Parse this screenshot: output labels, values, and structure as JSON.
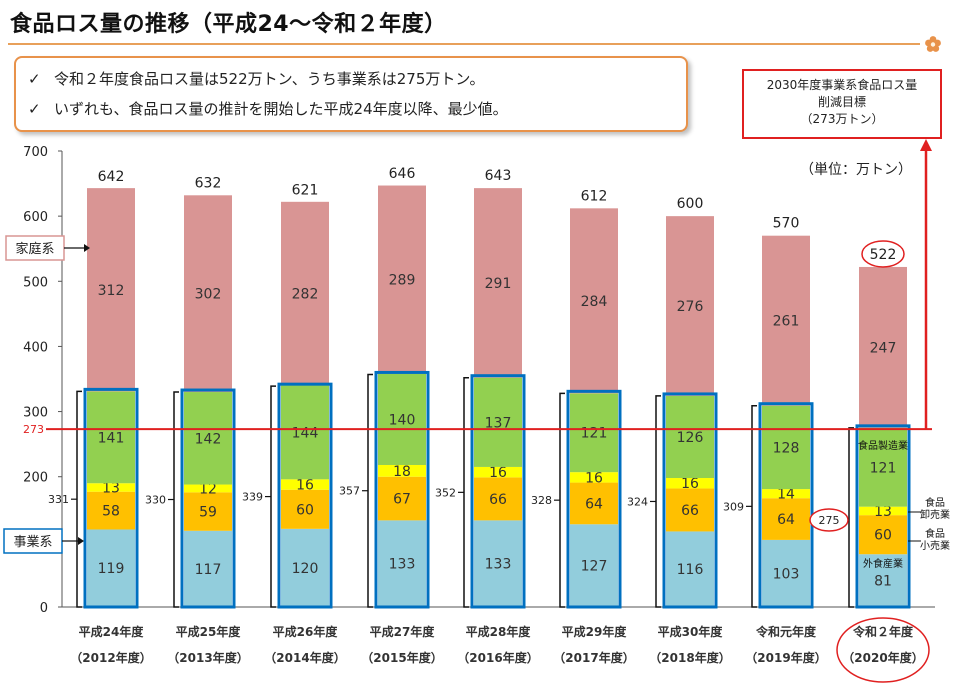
{
  "title": "食品ロス量の推移（平成24〜令和２年度）",
  "summary": {
    "check_mark": "✓",
    "lines": [
      "令和２年度食品ロス量は522万トン、うち事業系は275万トン。",
      "いずれも、食品ロス量の推計を開始した平成24年度以降、最少値。"
    ]
  },
  "target": {
    "lines": [
      "2030年度事業系食品ロス量",
      "削減目標",
      "（273万トン）"
    ],
    "value": 273,
    "line_label": "273"
  },
  "unit_label": "（単位：万トン）",
  "labels": {
    "household": "家庭系",
    "business": "事業系",
    "manufacturing": "食品製造業",
    "wholesale": "食品\n卸売業",
    "retail": "食品\n小売業",
    "foodservice": "外食産業"
  },
  "colors": {
    "household": "#d99594",
    "manufacturing": "#92d050",
    "wholesale": "#ffff00",
    "retail": "#ffc000",
    "foodservice": "#92cddc",
    "business_outline": "#0070c0",
    "target_red": "#e02020",
    "accent_orange": "#e8924a"
  },
  "chart_data": {
    "type": "bar",
    "stacked": true,
    "categories": [
      "平成24年度",
      "平成25年度",
      "平成26年度",
      "平成27年度",
      "平成28年度",
      "平成29年度",
      "平成30年度",
      "令和元年度",
      "令和２年度"
    ],
    "categories_sub": [
      "（2012年度）",
      "（2013年度）",
      "（2014年度）",
      "（2015年度）",
      "（2016年度）",
      "（2017年度）",
      "（2018年度）",
      "（2019年度）",
      "（2020年度）"
    ],
    "series": [
      {
        "key": "foodservice",
        "values": [
          119,
          117,
          120,
          133,
          133,
          127,
          116,
          103,
          81
        ]
      },
      {
        "key": "retail",
        "values": [
          58,
          59,
          60,
          67,
          66,
          64,
          66,
          64,
          60
        ]
      },
      {
        "key": "wholesale",
        "values": [
          13,
          12,
          16,
          18,
          16,
          16,
          16,
          14,
          13
        ]
      },
      {
        "key": "manufacturing",
        "values": [
          141,
          142,
          144,
          140,
          137,
          121,
          126,
          128,
          121
        ]
      },
      {
        "key": "household",
        "values": [
          312,
          302,
          282,
          289,
          291,
          284,
          276,
          261,
          247
        ]
      }
    ],
    "totals": [
      642,
      632,
      621,
      646,
      643,
      612,
      600,
      570,
      522
    ],
    "business_totals": [
      331,
      330,
      339,
      357,
      352,
      328,
      324,
      309,
      275
    ],
    "y_ticks": [
      0,
      100,
      200,
      300,
      400,
      500,
      600,
      700
    ],
    "ylim": [
      0,
      700
    ],
    "grid": false
  }
}
